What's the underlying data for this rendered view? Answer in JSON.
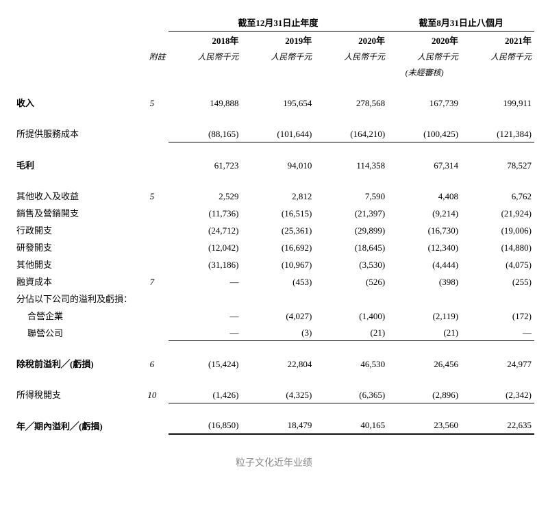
{
  "headers": {
    "span1": "截至12月31日止年度",
    "span2": "截至8月31日止八個月",
    "years": [
      "2018年",
      "2019年",
      "2020年",
      "2020年",
      "2021年"
    ],
    "noteLabel": "附註",
    "unit": "人民幣千元",
    "unaudited": "(未經審核)"
  },
  "rows": [
    {
      "label": "收入",
      "note": "5",
      "vals": [
        "149,888",
        "195,654",
        "278,568",
        "167,739",
        "199,911"
      ],
      "bold": true,
      "gapAfter": true
    },
    {
      "label": "所提供服務成本",
      "note": "",
      "vals": [
        "(88,165)",
        "(101,644)",
        "(164,210)",
        "(100,425)",
        "(121,384)"
      ],
      "underline": "single",
      "gapAfter": true
    },
    {
      "label": "毛利",
      "note": "",
      "vals": [
        "61,723",
        "94,010",
        "114,358",
        "67,314",
        "78,527"
      ],
      "bold": true,
      "gapAfter": true
    },
    {
      "label": "其他收入及收益",
      "note": "5",
      "vals": [
        "2,529",
        "2,812",
        "7,590",
        "4,408",
        "6,762"
      ]
    },
    {
      "label": "銷售及營銷開支",
      "note": "",
      "vals": [
        "(11,736)",
        "(16,515)",
        "(21,397)",
        "(9,214)",
        "(21,924)"
      ]
    },
    {
      "label": "行政開支",
      "note": "",
      "vals": [
        "(24,712)",
        "(25,361)",
        "(29,899)",
        "(16,730)",
        "(19,006)"
      ]
    },
    {
      "label": "研發開支",
      "note": "",
      "vals": [
        "(12,042)",
        "(16,692)",
        "(18,645)",
        "(12,340)",
        "(14,880)"
      ]
    },
    {
      "label": "其他開支",
      "note": "",
      "vals": [
        "(31,186)",
        "(10,967)",
        "(3,530)",
        "(4,444)",
        "(4,075)"
      ]
    },
    {
      "label": "融資成本",
      "note": "7",
      "vals": [
        "—",
        "(453)",
        "(526)",
        "(398)",
        "(255)"
      ]
    },
    {
      "label": "分佔以下公司的溢利及虧損：",
      "note": "",
      "vals": [
        "",
        "",
        "",
        "",
        ""
      ]
    },
    {
      "label": "合營企業",
      "note": "",
      "vals": [
        "—",
        "(4,027)",
        "(1,400)",
        "(2,119)",
        "(172)"
      ],
      "indent": true
    },
    {
      "label": "聯營公司",
      "note": "",
      "vals": [
        "—",
        "(3)",
        "(21)",
        "(21)",
        "—"
      ],
      "indent": true,
      "underline": "single",
      "gapAfter": true
    },
    {
      "label": "除稅前溢利╱(虧損)",
      "note": "6",
      "vals": [
        "(15,424)",
        "22,804",
        "46,530",
        "26,456",
        "24,977"
      ],
      "bold": true,
      "gapAfter": true
    },
    {
      "label": "所得稅開支",
      "note": "10",
      "vals": [
        "(1,426)",
        "(4,325)",
        "(6,365)",
        "(2,896)",
        "(2,342)"
      ],
      "underline": "single",
      "gapAfter": true
    },
    {
      "label": "年╱期內溢利╱(虧損)",
      "note": "",
      "vals": [
        "(16,850)",
        "18,479",
        "40,165",
        "23,560",
        "22,635"
      ],
      "bold": true,
      "underline": "double"
    }
  ],
  "caption": "粒子文化近年业绩"
}
